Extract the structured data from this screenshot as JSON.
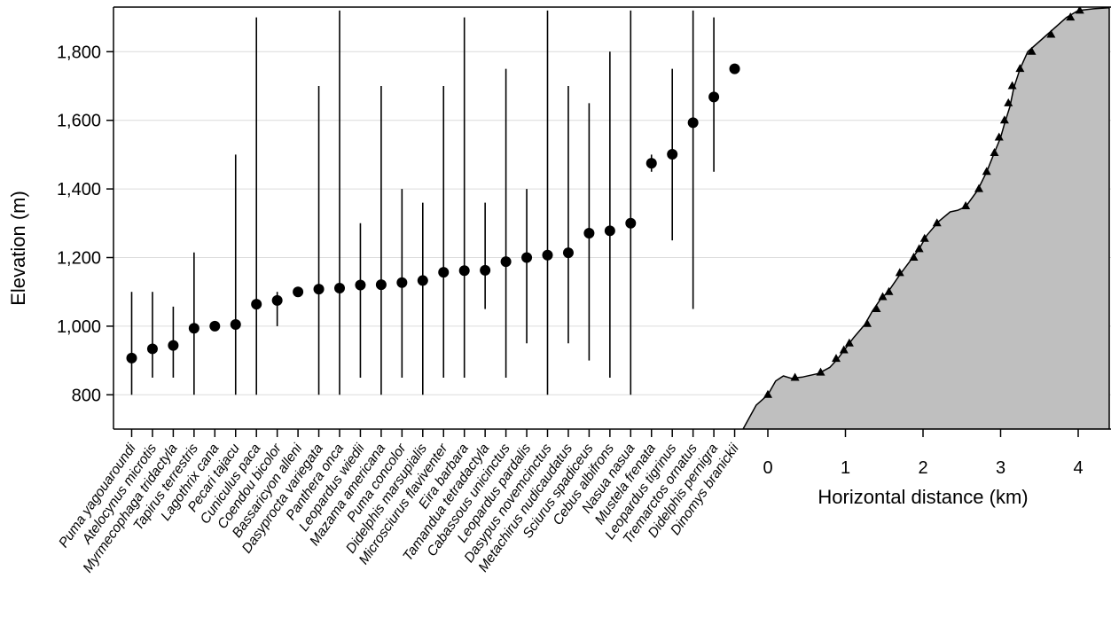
{
  "chart_data": {
    "type": "scatter",
    "ylabel": "Elevation (m)",
    "ylim": [
      700,
      1930
    ],
    "yticks": [
      800,
      1000,
      1200,
      1400,
      1600,
      1800
    ],
    "ytick_labels": [
      "800",
      "1,000",
      "1,200",
      "1,400",
      "1,600",
      "1,800"
    ],
    "grid": true,
    "species": [
      {
        "name": "Puma yagouaroundi",
        "mean": 907,
        "min": 800,
        "max": 1100
      },
      {
        "name": "Atelocynus microtis",
        "mean": 934,
        "min": 850,
        "max": 1100
      },
      {
        "name": "Myrmecophaga tridactyla",
        "mean": 944,
        "min": 850,
        "max": 1057
      },
      {
        "name": "Tapirus terrestris",
        "mean": 994,
        "min": 800,
        "max": 1215
      },
      {
        "name": "Lagothrix cana",
        "mean": 1000,
        "min": 1000,
        "max": 1000
      },
      {
        "name": "Pecari tajacu",
        "mean": 1005,
        "min": 800,
        "max": 1500
      },
      {
        "name": "Cuniculus paca",
        "mean": 1064,
        "min": 800,
        "max": 1900
      },
      {
        "name": "Coendou bicolor",
        "mean": 1075,
        "min": 1000,
        "max": 1100
      },
      {
        "name": "Bassaricyon alleni",
        "mean": 1100,
        "min": 1100,
        "max": 1100
      },
      {
        "name": "Dasyprocta variegata",
        "mean": 1108,
        "min": 800,
        "max": 1700
      },
      {
        "name": "Panthera onca",
        "mean": 1111,
        "min": 800,
        "max": 1920
      },
      {
        "name": "Leopardus wiedii",
        "mean": 1120,
        "min": 850,
        "max": 1300
      },
      {
        "name": "Mazama americana",
        "mean": 1121,
        "min": 800,
        "max": 1700
      },
      {
        "name": "Puma concolor",
        "mean": 1127,
        "min": 850,
        "max": 1400
      },
      {
        "name": "Didelphis marsupialis",
        "mean": 1133,
        "min": 800,
        "max": 1360
      },
      {
        "name": "Microsciurus flaviventer",
        "mean": 1157,
        "min": 850,
        "max": 1700
      },
      {
        "name": "Eira barbara",
        "mean": 1162,
        "min": 850,
        "max": 1900
      },
      {
        "name": "Tamandua tetradactyla",
        "mean": 1163,
        "min": 1050,
        "max": 1360
      },
      {
        "name": "Cabassous unicinctus",
        "mean": 1188,
        "min": 850,
        "max": 1750
      },
      {
        "name": "Leopardus pardalis",
        "mean": 1200,
        "min": 950,
        "max": 1400
      },
      {
        "name": "Dasypus novemcinctus",
        "mean": 1207,
        "min": 800,
        "max": 1920
      },
      {
        "name": "Metachirus nudicaudatus",
        "mean": 1214,
        "min": 950,
        "max": 1700
      },
      {
        "name": "Sciurus spadiceus",
        "mean": 1271,
        "min": 900,
        "max": 1650
      },
      {
        "name": "Cebus albifrons",
        "mean": 1278,
        "min": 850,
        "max": 1800
      },
      {
        "name": "Nasua nasua",
        "mean": 1300,
        "min": 800,
        "max": 1920
      },
      {
        "name": "Mustela frenata",
        "mean": 1475,
        "min": 1450,
        "max": 1500
      },
      {
        "name": "Leopardus tigrinus",
        "mean": 1501,
        "min": 1250,
        "max": 1750
      },
      {
        "name": "Tremarctos ornatus",
        "mean": 1593,
        "min": 1050,
        "max": 1920
      },
      {
        "name": "Didelphis pernigra",
        "mean": 1668,
        "min": 1450,
        "max": 1900
      },
      {
        "name": "Dinomys branickii",
        "mean": 1750,
        "min": 1750,
        "max": 1750
      }
    ],
    "profile": {
      "xlabel": "Horizontal distance (km)",
      "xticks": [
        0,
        1,
        2,
        3,
        4
      ],
      "xtick_labels": [
        "0",
        "1",
        "2",
        "3",
        "4"
      ],
      "xlim": [
        -0.35,
        4.4
      ],
      "outline": [
        [
          -0.32,
          700
        ],
        [
          -0.15,
          770
        ],
        [
          0,
          800
        ],
        [
          0.1,
          840
        ],
        [
          0.2,
          855
        ],
        [
          0.3,
          848
        ],
        [
          0.45,
          852
        ],
        [
          0.65,
          862
        ],
        [
          0.8,
          880
        ],
        [
          0.9,
          905
        ],
        [
          1,
          935
        ],
        [
          1.1,
          965
        ],
        [
          1.25,
          1005
        ],
        [
          1.35,
          1045
        ],
        [
          1.45,
          1078
        ],
        [
          1.55,
          1100
        ],
        [
          1.7,
          1150
        ],
        [
          1.85,
          1195
        ],
        [
          1.95,
          1225
        ],
        [
          2.05,
          1265
        ],
        [
          2.2,
          1305
        ],
        [
          2.35,
          1333
        ],
        [
          2.45,
          1338
        ],
        [
          2.55,
          1348
        ],
        [
          2.7,
          1395
        ],
        [
          2.82,
          1450
        ],
        [
          2.9,
          1495
        ],
        [
          3,
          1550
        ],
        [
          3.05,
          1590
        ],
        [
          3.12,
          1640
        ],
        [
          3.17,
          1695
        ],
        [
          3.25,
          1750
        ],
        [
          3.35,
          1800
        ],
        [
          3.6,
          1850
        ],
        [
          3.85,
          1900
        ],
        [
          4.0,
          1920
        ],
        [
          4.2,
          1925
        ],
        [
          4.4,
          1928
        ]
      ],
      "stations": [
        [
          0,
          800
        ],
        [
          0.35,
          850
        ],
        [
          0.68,
          865
        ],
        [
          0.88,
          905
        ],
        [
          0.98,
          930
        ],
        [
          1.05,
          950
        ],
        [
          1.28,
          1007
        ],
        [
          1.4,
          1050
        ],
        [
          1.48,
          1085
        ],
        [
          1.56,
          1100
        ],
        [
          1.7,
          1155
        ],
        [
          1.88,
          1200
        ],
        [
          1.95,
          1225
        ],
        [
          2.02,
          1255
        ],
        [
          2.18,
          1300
        ],
        [
          2.55,
          1350
        ],
        [
          2.72,
          1400
        ],
        [
          2.82,
          1450
        ],
        [
          2.92,
          1505
        ],
        [
          2.98,
          1550
        ],
        [
          3.05,
          1600
        ],
        [
          3.1,
          1650
        ],
        [
          3.15,
          1700
        ],
        [
          3.25,
          1750
        ],
        [
          3.4,
          1800
        ],
        [
          3.65,
          1850
        ],
        [
          3.9,
          1900
        ],
        [
          4.02,
          1920
        ]
      ]
    }
  }
}
